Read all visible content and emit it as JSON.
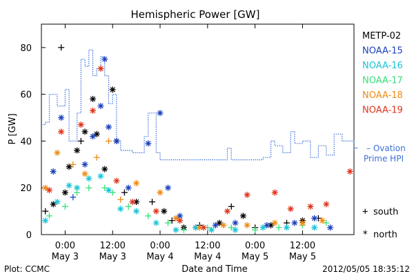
{
  "chart_data": {
    "type": "scatter",
    "title": "Hemispheric Power [GW]",
    "ylabel": "P [GW]",
    "xlabel": "Date and Time",
    "ylim": [
      0,
      90
    ],
    "yticks": [
      0,
      20,
      40,
      60,
      80
    ],
    "xrange": [
      "2012-05-02T18:00",
      "2012-05-06T01:00"
    ],
    "xticks": [
      {
        "t": "2012-05-03T00:00",
        "line1": "0:00",
        "line2": "May 3"
      },
      {
        "t": "2012-05-03T12:00",
        "line1": "12:00",
        "line2": "May 3"
      },
      {
        "t": "2012-05-04T00:00",
        "line1": "0:00",
        "line2": "May 4"
      },
      {
        "t": "2012-05-04T12:00",
        "line1": "12:00",
        "line2": "May 4"
      },
      {
        "t": "2012-05-05T00:00",
        "line1": "0:00",
        "line2": "May 5"
      },
      {
        "t": "2012-05-05T12:00",
        "line1": "12:00",
        "line2": "May 5"
      }
    ],
    "grid": false,
    "legend_placement": "right",
    "series": [
      {
        "name": "METP-02",
        "color": "#000000",
        "points": [
          [
            "2012-05-02T19:00",
            10,
            "south"
          ],
          [
            "2012-05-02T21:00",
            13,
            "north"
          ],
          [
            "2012-05-03T00:00",
            18,
            "north"
          ],
          [
            "2012-05-02T23:00",
            80,
            "south"
          ],
          [
            "2012-05-03T01:00",
            29,
            "north"
          ],
          [
            "2012-05-03T03:00",
            36,
            "north"
          ],
          [
            "2012-05-03T04:00",
            40,
            "south"
          ],
          [
            "2012-05-03T05:00",
            44,
            "north"
          ],
          [
            "2012-05-03T07:00",
            58,
            "north"
          ],
          [
            "2012-05-03T08:00",
            43,
            "north"
          ],
          [
            "2012-05-03T10:00",
            28,
            "north"
          ],
          [
            "2012-05-03T12:00",
            62,
            "north"
          ],
          [
            "2012-05-03T13:00",
            40,
            "north"
          ],
          [
            "2012-05-03T15:00",
            18,
            "south"
          ],
          [
            "2012-05-03T18:00",
            14,
            "north"
          ],
          [
            "2012-05-03T22:00",
            14,
            "south"
          ],
          [
            "2012-05-04T01:00",
            10,
            "north"
          ],
          [
            "2012-05-04T03:00",
            6,
            "south"
          ],
          [
            "2012-05-04T06:00",
            3,
            "north"
          ],
          [
            "2012-05-04T10:00",
            4,
            "south"
          ],
          [
            "2012-05-04T15:00",
            5,
            "north"
          ],
          [
            "2012-05-04T18:00",
            12,
            "south"
          ],
          [
            "2012-05-04T21:00",
            8,
            "north"
          ],
          [
            "2012-05-05T00:00",
            3,
            "south"
          ],
          [
            "2012-05-05T04:00",
            4,
            "north"
          ],
          [
            "2012-05-05T08:00",
            5,
            "south"
          ],
          [
            "2012-05-05T12:00",
            6,
            "north"
          ],
          [
            "2012-05-05T16:00",
            7,
            "south"
          ]
        ]
      },
      {
        "name": "NOAA-15",
        "color": "#1a3fbf",
        "points": [
          [
            "2012-05-02T21:00",
            27,
            "north"
          ],
          [
            "2012-05-02T23:00",
            50,
            "north"
          ],
          [
            "2012-05-03T02:00",
            16,
            "south"
          ],
          [
            "2012-05-03T05:00",
            30,
            "north"
          ],
          [
            "2012-05-03T07:00",
            42,
            "north"
          ],
          [
            "2012-05-03T09:00",
            55,
            "north"
          ],
          [
            "2012-05-03T10:00",
            75,
            "north"
          ],
          [
            "2012-05-03T11:00",
            46,
            "north"
          ],
          [
            "2012-05-03T13:00",
            40,
            "north"
          ],
          [
            "2012-05-03T16:00",
            20,
            "north"
          ],
          [
            "2012-05-03T21:00",
            39,
            "north"
          ],
          [
            "2012-05-04T00:00",
            52,
            "north"
          ],
          [
            "2012-05-04T02:00",
            20,
            "north"
          ],
          [
            "2012-05-04T05:00",
            8,
            "north"
          ],
          [
            "2012-05-04T09:00",
            3,
            "north"
          ],
          [
            "2012-05-04T14:00",
            4,
            "north"
          ],
          [
            "2012-05-04T19:00",
            5,
            "north"
          ],
          [
            "2012-05-05T03:00",
            4,
            "north"
          ],
          [
            "2012-05-05T10:00",
            5,
            "north"
          ],
          [
            "2012-05-05T15:00",
            7,
            "north"
          ],
          [
            "2012-05-05T19:00",
            3,
            "north"
          ]
        ]
      },
      {
        "name": "NOAA-16",
        "color": "#19c3d8",
        "points": [
          [
            "2012-05-02T19:00",
            6,
            "north"
          ],
          [
            "2012-05-02T22:00",
            14,
            "north"
          ],
          [
            "2012-05-03T01:00",
            21,
            "north"
          ],
          [
            "2012-05-03T03:00",
            20,
            "north"
          ],
          [
            "2012-05-03T06:00",
            24,
            "north"
          ],
          [
            "2012-05-03T09:00",
            25,
            "north"
          ],
          [
            "2012-05-03T11:00",
            19,
            "north"
          ],
          [
            "2012-05-03T14:00",
            11,
            "north"
          ],
          [
            "2012-05-03T18:00",
            10,
            "north"
          ],
          [
            "2012-05-03T23:00",
            5,
            "north"
          ],
          [
            "2012-05-04T04:00",
            2,
            "north"
          ],
          [
            "2012-05-04T09:00",
            3,
            "north"
          ],
          [
            "2012-05-04T13:00",
            2,
            "north"
          ],
          [
            "2012-05-04T19:00",
            2,
            "north"
          ],
          [
            "2012-05-05T02:00",
            3,
            "north"
          ],
          [
            "2012-05-05T08:00",
            3,
            "north"
          ],
          [
            "2012-05-05T15:00",
            3,
            "north"
          ]
        ]
      },
      {
        "name": "NOAA-17",
        "color": "#33e07a",
        "points": [
          [
            "2012-05-02T20:00",
            8,
            "south"
          ],
          [
            "2012-05-03T00:00",
            12,
            "south"
          ],
          [
            "2012-05-03T03:00",
            18,
            "south"
          ],
          [
            "2012-05-03T06:00",
            20,
            "south"
          ],
          [
            "2012-05-03T10:00",
            20,
            "south"
          ],
          [
            "2012-05-03T12:00",
            18,
            "south"
          ],
          [
            "2012-05-03T16:00",
            12,
            "south"
          ],
          [
            "2012-05-03T21:00",
            8,
            "south"
          ],
          [
            "2012-05-04T02:00",
            5,
            "south"
          ],
          [
            "2012-05-04T06:00",
            2,
            "south"
          ],
          [
            "2012-05-04T12:00",
            3,
            "south"
          ],
          [
            "2012-05-04T18:00",
            3,
            "south"
          ],
          [
            "2012-05-05T00:00",
            2,
            "south"
          ],
          [
            "2012-05-05T06:00",
            3,
            "south"
          ],
          [
            "2012-05-05T12:00",
            4,
            "south"
          ],
          [
            "2012-05-05T18:00",
            5,
            "south"
          ]
        ]
      },
      {
        "name": "NOAA-18",
        "color": "#f08a10",
        "points": [
          [
            "2012-05-02T19:00",
            20,
            "north"
          ],
          [
            "2012-05-02T22:00",
            35,
            "north"
          ],
          [
            "2012-05-03T02:00",
            30,
            "south"
          ],
          [
            "2012-05-03T05:00",
            26,
            "north"
          ],
          [
            "2012-05-03T08:00",
            33,
            "south"
          ],
          [
            "2012-05-03T11:00",
            40,
            "south"
          ],
          [
            "2012-05-03T14:00",
            15,
            "south"
          ],
          [
            "2012-05-03T18:00",
            22,
            "north"
          ],
          [
            "2012-05-04T00:00",
            18,
            "north"
          ],
          [
            "2012-05-04T04:00",
            7,
            "north"
          ],
          [
            "2012-05-04T10:00",
            3,
            "north"
          ],
          [
            "2012-05-04T16:00",
            4,
            "north"
          ],
          [
            "2012-05-04T22:00",
            4,
            "north"
          ],
          [
            "2012-05-05T05:00",
            5,
            "north"
          ],
          [
            "2012-05-05T12:00",
            5,
            "north"
          ],
          [
            "2012-05-05T17:00",
            6,
            "north"
          ]
        ]
      },
      {
        "name": "NOAA-19",
        "color": "#e0321a",
        "points": [
          [
            "2012-05-02T20:00",
            19,
            "north"
          ],
          [
            "2012-05-02T23:00",
            44,
            "north"
          ],
          [
            "2012-05-03T04:00",
            47,
            "north"
          ],
          [
            "2012-05-03T07:00",
            53,
            "north"
          ],
          [
            "2012-05-03T09:00",
            71,
            "north"
          ],
          [
            "2012-05-03T13:00",
            23,
            "north"
          ],
          [
            "2012-05-03T17:00",
            14,
            "north"
          ],
          [
            "2012-05-03T23:00",
            10,
            "north"
          ],
          [
            "2012-05-04T05:00",
            6,
            "north"
          ],
          [
            "2012-05-04T11:00",
            3,
            "north"
          ],
          [
            "2012-05-04T17:00",
            10,
            "north"
          ],
          [
            "2012-05-04T22:00",
            17,
            "north"
          ],
          [
            "2012-05-05T05:00",
            18,
            "north"
          ],
          [
            "2012-05-05T09:00",
            11,
            "north"
          ],
          [
            "2012-05-05T14:00",
            12,
            "north"
          ],
          [
            "2012-05-05T18:00",
            13,
            "north"
          ],
          [
            "2012-05-06T00:00",
            27,
            "north"
          ]
        ]
      }
    ],
    "ovation": {
      "name": "Ovation Prime HPI",
      "color": "#3a6fd8",
      "style": "dotted",
      "steps": [
        [
          "2012-05-02T18:00",
          47
        ],
        [
          "2012-05-02T19:00",
          48
        ],
        [
          "2012-05-02T20:00",
          60
        ],
        [
          "2012-05-02T22:00",
          55
        ],
        [
          "2012-05-03T00:00",
          62
        ],
        [
          "2012-05-03T01:00",
          40
        ],
        [
          "2012-05-03T03:00",
          52
        ],
        [
          "2012-05-03T04:00",
          75
        ],
        [
          "2012-05-03T05:00",
          72
        ],
        [
          "2012-05-03T06:00",
          79
        ],
        [
          "2012-05-03T07:00",
          68
        ],
        [
          "2012-05-03T08:00",
          71
        ],
        [
          "2012-05-03T09:00",
          76
        ],
        [
          "2012-05-03T10:00",
          68
        ],
        [
          "2012-05-03T11:00",
          56
        ],
        [
          "2012-05-03T12:00",
          60
        ],
        [
          "2012-05-03T13:00",
          40
        ],
        [
          "2012-05-03T14:00",
          36
        ],
        [
          "2012-05-03T17:00",
          35
        ],
        [
          "2012-05-03T20:00",
          42
        ],
        [
          "2012-05-03T21:00",
          52
        ],
        [
          "2012-05-03T23:00",
          35
        ],
        [
          "2012-05-04T00:00",
          32
        ],
        [
          "2012-05-04T17:00",
          37
        ],
        [
          "2012-05-04T18:00",
          32
        ],
        [
          "2012-05-05T02:00",
          33
        ],
        [
          "2012-05-05T04:00",
          40
        ],
        [
          "2012-05-05T05:00",
          38
        ],
        [
          "2012-05-05T07:00",
          35
        ],
        [
          "2012-05-05T09:00",
          44
        ],
        [
          "2012-05-05T10:00",
          39
        ],
        [
          "2012-05-05T12:00",
          40
        ],
        [
          "2012-05-05T14:00",
          33
        ],
        [
          "2012-05-05T16:00",
          38
        ],
        [
          "2012-05-05T18:00",
          34
        ],
        [
          "2012-05-05T20:00",
          43
        ],
        [
          "2012-05-05T22:00",
          40
        ],
        [
          "2012-05-06T01:00",
          36
        ]
      ]
    },
    "legend_entries": [
      {
        "label": "METP-02",
        "color": "#000000"
      },
      {
        "label": "NOAA-15",
        "color": "#1a3fbf"
      },
      {
        "label": "NOAA-16",
        "color": "#19c3d8"
      },
      {
        "label": "NOAA-17",
        "color": "#33e07a"
      },
      {
        "label": "NOAA-18",
        "color": "#f08a10"
      },
      {
        "label": "NOAA-19",
        "color": "#e0321a"
      }
    ],
    "ovation_label_line1": "– Ovation",
    "ovation_label_line2": "Prime HPI",
    "ovation_dash": "–",
    "marker_legend": [
      {
        "symbol": "+",
        "label": "south"
      },
      {
        "symbol": "*",
        "label": "north"
      }
    ],
    "footer_left": "Plot: CCMC",
    "footer_right": "2012/05/05 18:35:12"
  }
}
